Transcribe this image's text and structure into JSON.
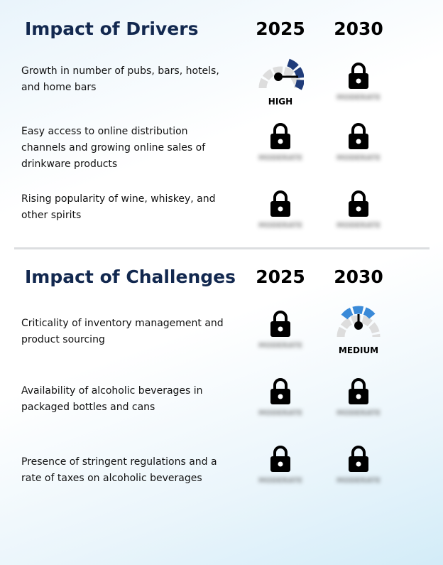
{
  "drivers": {
    "title": "Impact of Drivers",
    "year_1": "2025",
    "year_2": "2030",
    "rows": [
      {
        "label": "Growth in number of pubs, bars, hotels, and home bars",
        "y2025": {
          "type": "gauge",
          "level": "HIGH"
        },
        "y2030": {
          "type": "locked",
          "hidden_text": "MODERATE"
        }
      },
      {
        "label": "Easy access to online distribution channels and growing online sales of drinkware products",
        "y2025": {
          "type": "locked",
          "hidden_text": "MODERATE"
        },
        "y2030": {
          "type": "locked",
          "hidden_text": "MODERATE"
        }
      },
      {
        "label": "Rising popularity of wine, whiskey, and other spirits",
        "y2025": {
          "type": "locked",
          "hidden_text": "MODERATE"
        },
        "y2030": {
          "type": "locked",
          "hidden_text": "MODERATE"
        }
      }
    ]
  },
  "challenges": {
    "title": "Impact of Challenges",
    "year_1": "2025",
    "year_2": "2030",
    "rows": [
      {
        "label": "Criticality of inventory management and product sourcing",
        "y2025": {
          "type": "locked",
          "hidden_text": "MODERATE"
        },
        "y2030": {
          "type": "gauge",
          "level": "MEDIUM"
        }
      },
      {
        "label": "Availability of alcoholic beverages in packaged bottles and cans",
        "y2025": {
          "type": "locked",
          "hidden_text": "MODERATE"
        },
        "y2030": {
          "type": "locked",
          "hidden_text": "MODERATE"
        }
      },
      {
        "label": "Presence of stringent regulations and a rate of taxes on alcoholic beverages",
        "y2025": {
          "type": "locked",
          "hidden_text": "MODERATE"
        },
        "y2030": {
          "type": "locked",
          "hidden_text": "MODERATE"
        }
      }
    ]
  },
  "colors": {
    "title": "#12284f",
    "gauge_high": "#203c7a",
    "gauge_medium": "#3a8ad8",
    "gauge_track": "#dddddd",
    "lock": "#000000"
  },
  "icons": {
    "lock": "lock-icon",
    "gauge": "gauge-icon"
  }
}
